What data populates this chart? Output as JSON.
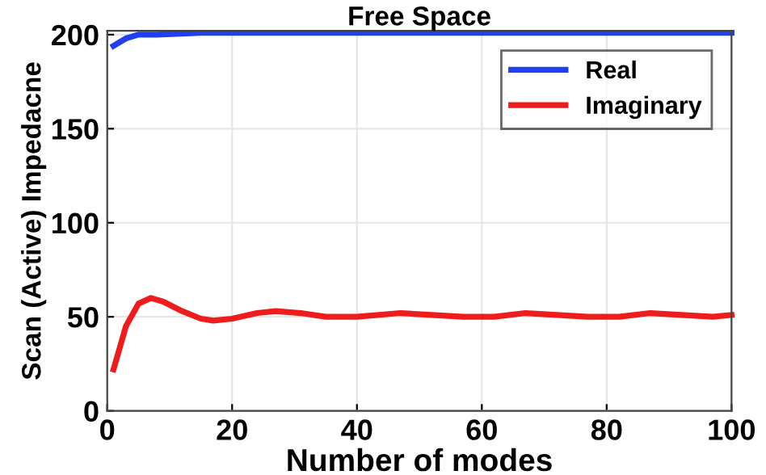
{
  "chart_data": {
    "type": "line",
    "title": "Free Space",
    "xlabel": "Number of modes",
    "ylabel": "Scan (Active) Impedacne",
    "xlim": [
      0,
      100
    ],
    "ylim": [
      0,
      202
    ],
    "xticks": [
      0,
      20,
      40,
      60,
      80,
      100
    ],
    "yticks": [
      0,
      50,
      100,
      150,
      200
    ],
    "grid": true,
    "legend": "top right",
    "line_style": "solid",
    "marker": "none",
    "series": [
      {
        "name": "Real",
        "color": "#1f3ff0",
        "x": [
          1,
          2,
          3,
          5,
          8,
          15,
          30,
          50,
          75,
          100
        ],
        "values": [
          194,
          196,
          198,
          200,
          200,
          201,
          201,
          201,
          201,
          201
        ]
      },
      {
        "name": "Imaginary",
        "color": "#ee1c1c",
        "x": [
          1,
          3,
          5,
          7,
          9,
          12,
          15,
          17,
          20,
          24,
          27,
          31,
          35,
          40,
          47,
          52,
          57,
          62,
          67,
          72,
          77,
          82,
          87,
          92,
          97,
          100
        ],
        "values": [
          22,
          45,
          57,
          60,
          58,
          53,
          49,
          48,
          49,
          52,
          53,
          52,
          50,
          50,
          52,
          51,
          50,
          50,
          52,
          51,
          50,
          50,
          52,
          51,
          50,
          51
        ]
      }
    ]
  }
}
